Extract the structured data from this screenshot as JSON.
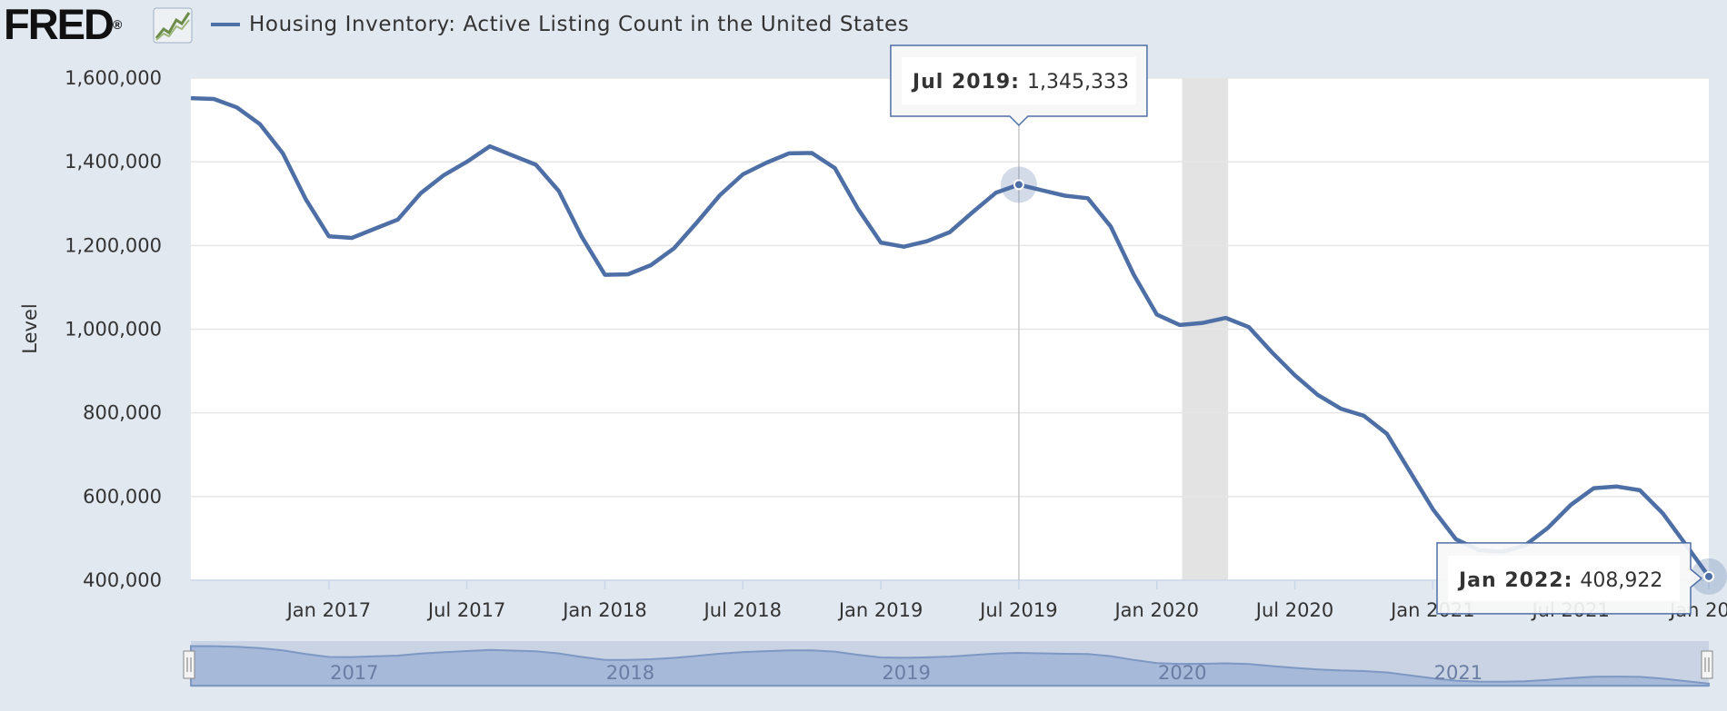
{
  "header": {
    "logo_text": "FRED",
    "logo_mark": "®",
    "logo_icon": "trend-chart-icon",
    "series_title": "Housing Inventory: Active Listing Count in the United States"
  },
  "colors": {
    "series": "#4e6fa6",
    "background": "#e1e8f0",
    "plot": "#ffffff",
    "recession": "#e3e3e3",
    "navigator_fill": "#bccbe3"
  },
  "chart_data": {
    "type": "line",
    "title": "Housing Inventory: Active Listing Count in the United States",
    "ylabel": "Level",
    "xlabel": "",
    "ylim": [
      400000,
      1600000
    ],
    "yticks": [
      400000,
      600000,
      800000,
      1000000,
      1200000,
      1400000,
      1600000
    ],
    "ytick_labels": [
      "400,000",
      "600,000",
      "800,000",
      "1,000,000",
      "1,200,000",
      "1,400,000",
      "1,600,000"
    ],
    "xticks": [
      {
        "label": "Jan 2017",
        "index": 6
      },
      {
        "label": "Jul 2017",
        "index": 12
      },
      {
        "label": "Jan 2018",
        "index": 18
      },
      {
        "label": "Jul 2018",
        "index": 24
      },
      {
        "label": "Jan 2019",
        "index": 30
      },
      {
        "label": "Jul 2019",
        "index": 36
      },
      {
        "label": "Jan 2020",
        "index": 42
      },
      {
        "label": "Jul 2020",
        "index": 48
      },
      {
        "label": "Jan 2021",
        "index": 54
      },
      {
        "label": "Jul 2021",
        "index": 60
      },
      {
        "label": "Jan 20...",
        "index": 66
      }
    ],
    "grid": true,
    "recession_band": {
      "start_index": 43.1,
      "end_index": 45.1
    },
    "series": [
      {
        "name": "Housing Inventory: Active Listing Count in the United States",
        "start": "Jul 2016",
        "values": [
          1552000,
          1550000,
          1530000,
          1490000,
          1420000,
          1310000,
          1222000,
          1218000,
          1240000,
          1262000,
          1325000,
          1368000,
          1400000,
          1437000,
          1415000,
          1393000,
          1330000,
          1220000,
          1130000,
          1131000,
          1153000,
          1193000,
          1255000,
          1320000,
          1370000,
          1397000,
          1420000,
          1421000,
          1385000,
          1288000,
          1207000,
          1197000,
          1210000,
          1232000,
          1280000,
          1326000,
          1345333,
          1332000,
          1319000,
          1313000,
          1245000,
          1130000,
          1035000,
          1010000,
          1015000,
          1027000,
          1005000,
          945000,
          890000,
          843000,
          810000,
          793000,
          750000,
          660000,
          570000,
          498000,
          472000,
          468000,
          483000,
          525000,
          580000,
          620000,
          624000,
          615000,
          560000,
          485000,
          408922
        ]
      }
    ],
    "tooltips": [
      {
        "date": "Jul 2019:",
        "value": "1,345,333",
        "index": 36
      },
      {
        "date": "Jan 2022:",
        "value": "408,922",
        "index": 66
      }
    ],
    "navigator": {
      "year_labels": [
        "2017",
        "2018",
        "2019",
        "2020",
        "2021"
      ],
      "year_index": [
        6,
        18,
        30,
        42,
        54
      ]
    }
  }
}
